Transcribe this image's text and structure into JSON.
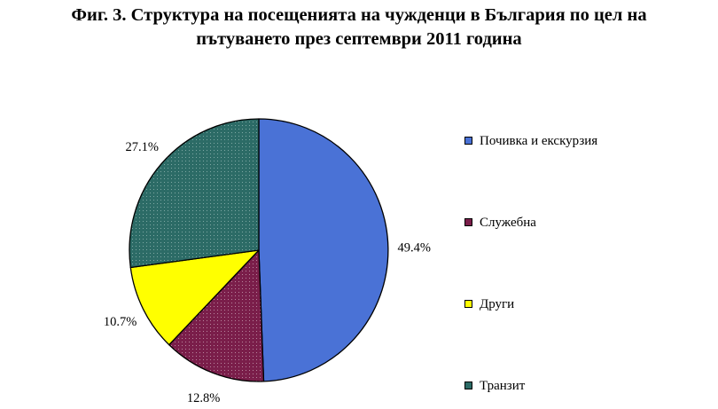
{
  "title": {
    "line1": "Фиг. 3. Структура на посещенията на чужденци в България по цел на",
    "line2": "пътуването през септември 2011 година"
  },
  "chart_data": {
    "type": "pie",
    "title": "Фиг. 3. Структура на посещенията на чужденци в България по цел на пътуването през септември 2011 година",
    "start_angle_deg": 0,
    "direction": "clockwise",
    "legend_position": "right",
    "slices": [
      {
        "name": "Почивка и екскурзия",
        "value": 49.4,
        "label": "49.4%",
        "color": "#4a72d6",
        "pattern": "none"
      },
      {
        "name": "Служебна",
        "value": 12.8,
        "label": "12.8%",
        "color": "#7a1e4a",
        "pattern": "dots"
      },
      {
        "name": "Други",
        "value": 10.7,
        "label": "10.7%",
        "color": "#ffff00",
        "pattern": "none"
      },
      {
        "name": "Транзит",
        "value": 27.1,
        "label": "27.1%",
        "color": "#2c6b66",
        "pattern": "dots"
      }
    ]
  }
}
